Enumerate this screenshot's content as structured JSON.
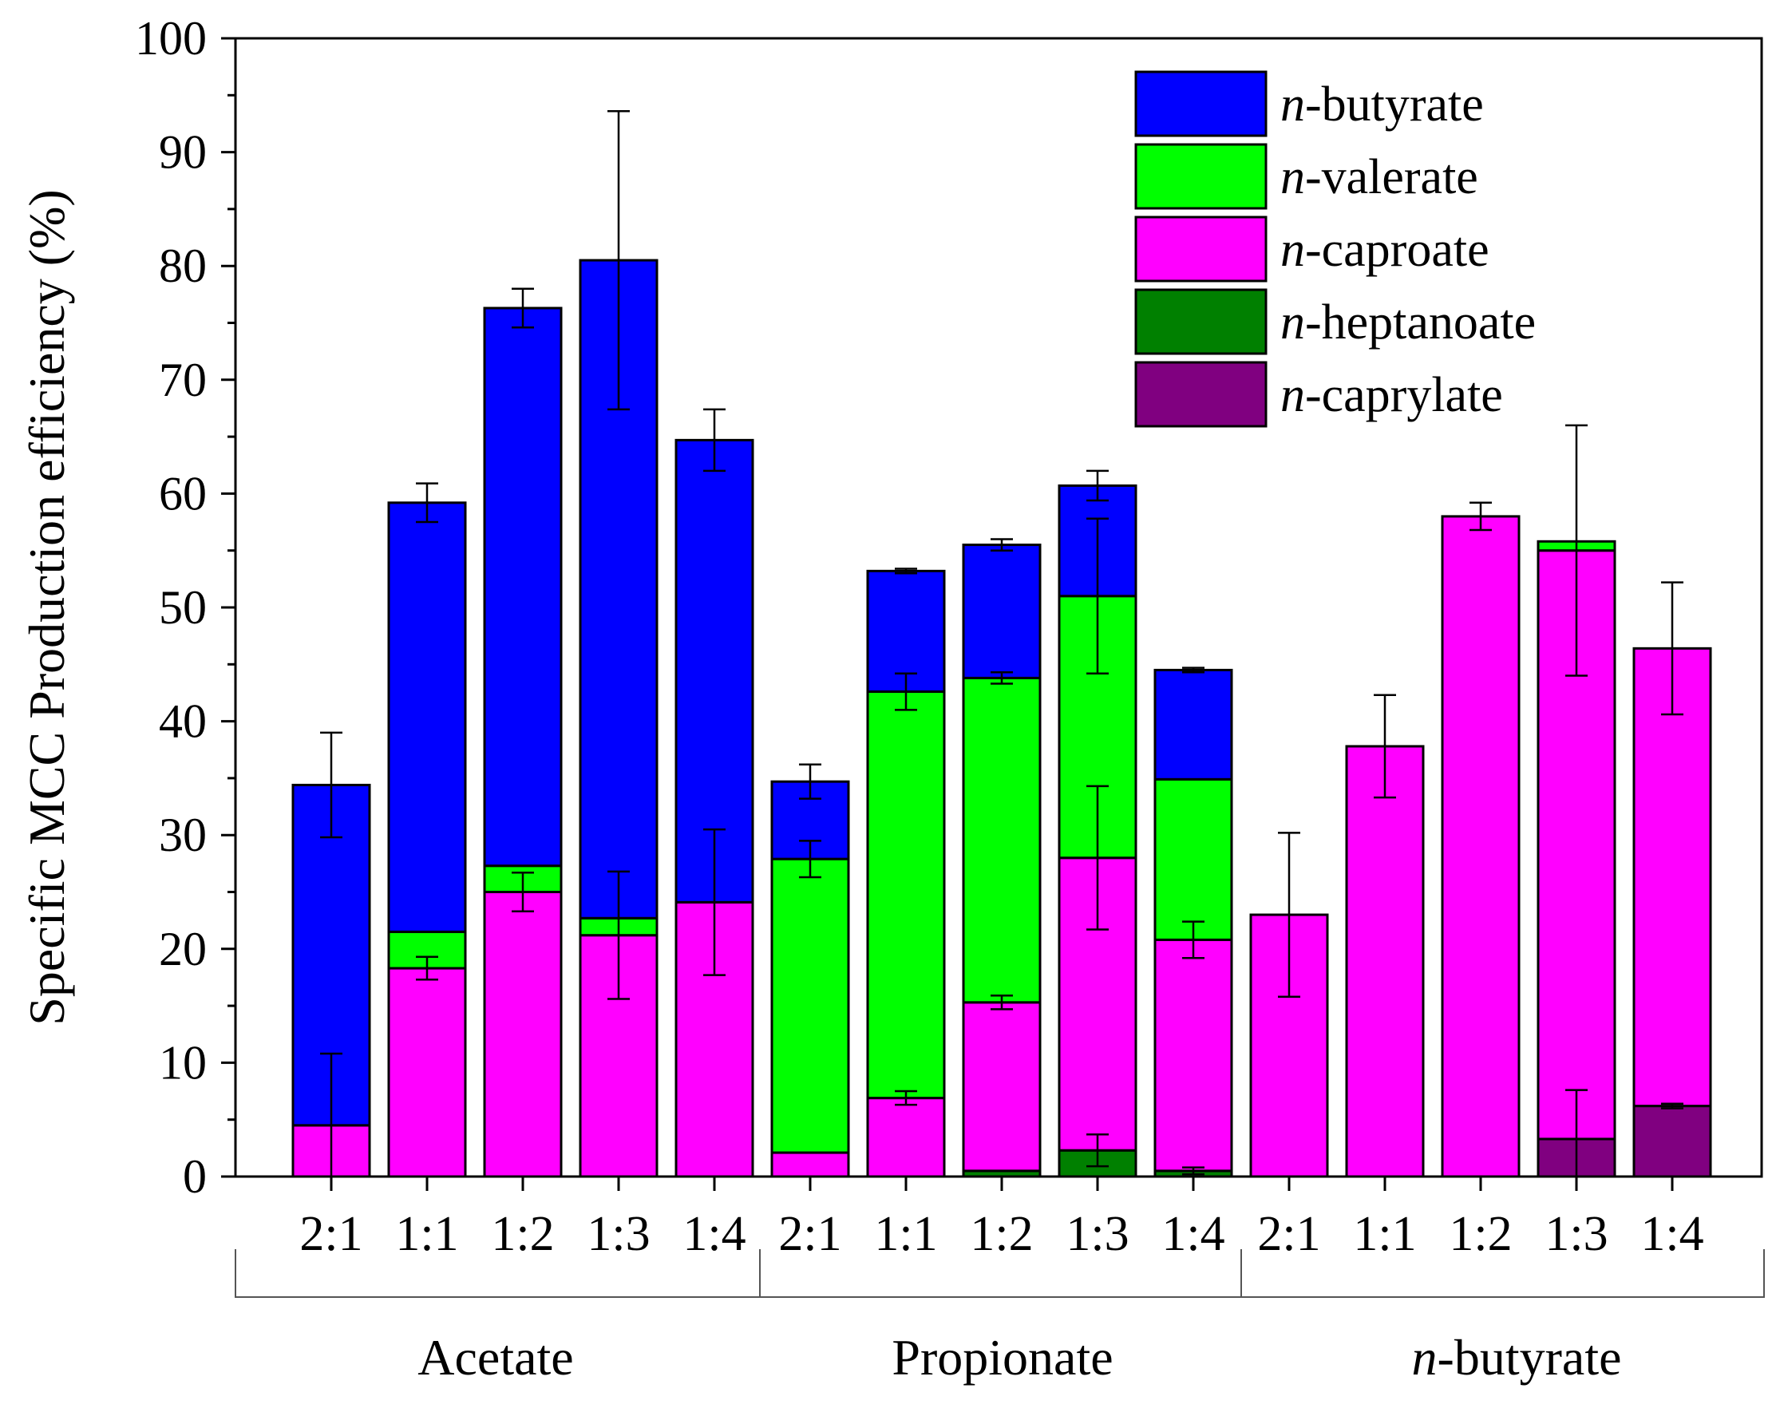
{
  "chart_data": {
    "type": "bar",
    "stacked": true,
    "title": "",
    "xlabel": "",
    "ylabel": "Specific MCC Production efficiency (%)",
    "ylim": [
      0,
      100
    ],
    "yticks": [
      0,
      10,
      20,
      30,
      40,
      50,
      60,
      70,
      80,
      90,
      100
    ],
    "legend_position": "top-right",
    "groups": [
      {
        "label_prefix": "",
        "label": "Acetate",
        "categories": [
          "2:1",
          "1:1",
          "1:2",
          "1:3",
          "1:4"
        ]
      },
      {
        "label_prefix": "",
        "label": "Propionate",
        "categories": [
          "2:1",
          "1:1",
          "1:2",
          "1:3",
          "1:4"
        ]
      },
      {
        "label_prefix": "n",
        "label": "-butyrate",
        "categories": [
          "2:1",
          "1:1",
          "1:2",
          "1:3",
          "1:4"
        ]
      }
    ],
    "series": [
      {
        "prefix": "n",
        "name": "-caprylate",
        "color": "#800080",
        "values": [
          0,
          0,
          0,
          0,
          0,
          0,
          0,
          0,
          0,
          0,
          0,
          0,
          0,
          3.3,
          6.2
        ],
        "errors": [
          0,
          0,
          0,
          0,
          0,
          0,
          0,
          0,
          0,
          0,
          0,
          0,
          0,
          4.3,
          0.2
        ]
      },
      {
        "prefix": "n",
        "name": "-heptanoate",
        "color": "#008000",
        "values": [
          0,
          0,
          0,
          0,
          0,
          0,
          0,
          0.5,
          2.3,
          0.5,
          0,
          0,
          0,
          0,
          0
        ],
        "errors": [
          0,
          0,
          0,
          0,
          0,
          0,
          0,
          0,
          1.4,
          0.3,
          0,
          0,
          0,
          0,
          0
        ]
      },
      {
        "prefix": "n",
        "name": "-caproate",
        "color": "#ff00ff",
        "values": [
          4.5,
          18.3,
          25.0,
          21.2,
          24.1,
          2.1,
          6.9,
          14.8,
          25.7,
          20.3,
          23.0,
          37.8,
          58.0,
          51.7,
          40.2
        ],
        "errors": [
          6.3,
          1.0,
          1.7,
          5.6,
          6.4,
          0,
          0.6,
          0.6,
          6.3,
          1.6,
          7.2,
          4.5,
          1.2,
          11.0,
          5.8
        ]
      },
      {
        "prefix": "n",
        "name": "-valerate",
        "color": "#00ff00",
        "values": [
          0,
          3.2,
          2.3,
          1.5,
          0,
          25.8,
          35.7,
          28.5,
          23.0,
          14.1,
          0,
          0,
          0,
          0.8,
          0
        ],
        "errors": [
          0,
          0,
          0,
          0,
          0,
          1.6,
          1.6,
          0.5,
          6.8,
          0,
          0,
          0,
          0,
          0,
          0
        ]
      },
      {
        "prefix": "n",
        "name": "-butyrate",
        "color": "#0000ff",
        "values": [
          29.9,
          37.7,
          49.0,
          57.8,
          40.6,
          6.8,
          10.6,
          11.7,
          9.7,
          9.6,
          0,
          0,
          0,
          0,
          0
        ],
        "errors": [
          4.6,
          1.7,
          1.7,
          13.1,
          2.7,
          1.5,
          0.2,
          0.5,
          1.3,
          0.2,
          0,
          0,
          0,
          10.4,
          0
        ]
      }
    ],
    "legend_order": [
      4,
      3,
      2,
      1,
      0
    ]
  }
}
